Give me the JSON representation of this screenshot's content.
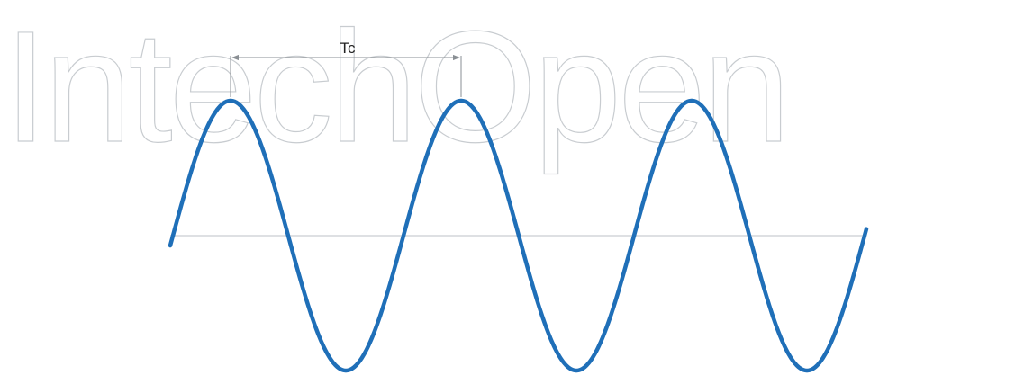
{
  "watermark": {
    "text": "IntechOpen"
  },
  "diagram": {
    "period_label": "Tc",
    "wave_color": "#1f6fb8",
    "axis_color": "#c9cdd2",
    "dimension_color": "#8a8f94",
    "watermark_color": "#c8ccd0",
    "cycles_shown": 3
  }
}
